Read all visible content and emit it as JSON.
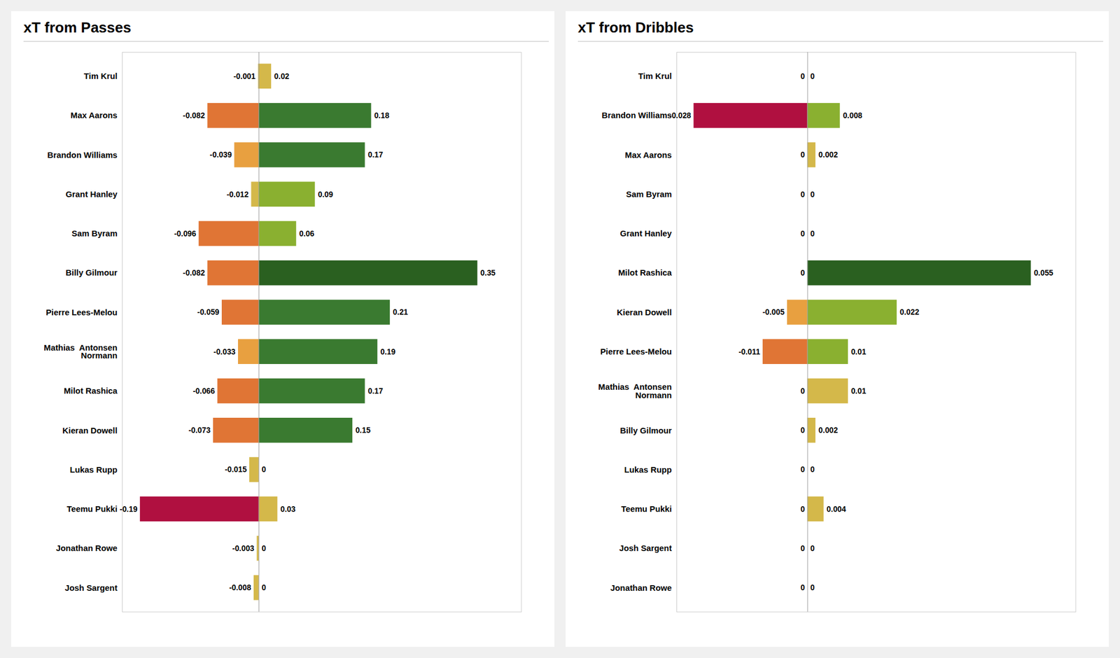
{
  "chart_data": [
    {
      "type": "bar",
      "orientation": "horizontal",
      "title": "xT from Passes",
      "categories": [
        "Tim Krul",
        "Max Aarons",
        "Brandon Williams",
        "Grant Hanley",
        "Sam Byram",
        "Billy Gilmour",
        "Pierre Lees-Melou",
        "Mathias  Antonsen\nNormann",
        "Milot Rashica",
        "Kieran Dowell",
        "Lukas Rupp",
        "Teemu Pukki",
        "Jonathan Rowe",
        "Josh Sargent"
      ],
      "series": [
        {
          "values": [
            -0.001,
            -0.082,
            -0.039,
            -0.012,
            -0.096,
            -0.082,
            -0.059,
            -0.033,
            -0.066,
            -0.073,
            -0.015,
            -0.19,
            -0.003,
            -0.008
          ],
          "colors": [
            "#d4b84a",
            "#e07535",
            "#e8a040",
            "#d4b84a",
            "#e07535",
            "#e07535",
            "#e07535",
            "#e8a040",
            "#e07535",
            "#e07535",
            "#d4b84a",
            "#b01040",
            "#d4b84a",
            "#d4b84a"
          ]
        },
        {
          "values": [
            0.02,
            0.18,
            0.17,
            0.09,
            0.06,
            0.35,
            0.21,
            0.19,
            0.17,
            0.15,
            0,
            0.03,
            0,
            0
          ],
          "colors": [
            "#d4b84a",
            "#3a7a30",
            "#3a7a30",
            "#8ab030",
            "#8ab030",
            "#2a6020",
            "#3a7a30",
            "#3a7a30",
            "#3a7a30",
            "#3a7a30",
            "#d4b84a",
            "#d4b84a",
            "#d4b84a",
            "#d4b84a"
          ]
        }
      ],
      "xlim": [
        -0.2185,
        0.42
      ],
      "data_labels": true,
      "tick_labels": "y",
      "grid": false
    },
    {
      "type": "bar",
      "orientation": "horizontal",
      "title": "xT from Dribbles",
      "categories": [
        "Tim Krul",
        "Brandon Williams",
        "Max Aarons",
        "Sam Byram",
        "Grant Hanley",
        "Milot Rashica",
        "Kieran Dowell",
        "Pierre Lees-Melou",
        "Mathias  Antonsen\nNormann",
        "Billy Gilmour",
        "Lukas Rupp",
        "Teemu Pukki",
        "Josh Sargent",
        "Jonathan Rowe"
      ],
      "series": [
        {
          "values": [
            0,
            -0.028,
            0,
            0,
            0,
            0,
            -0.005,
            -0.011,
            0,
            0,
            0,
            0,
            0,
            0
          ],
          "colors": [
            "#d4b84a",
            "#b01040",
            "#d4b84a",
            "#d4b84a",
            "#d4b84a",
            "#d4b84a",
            "#e8a040",
            "#e07535",
            "#d4b84a",
            "#d4b84a",
            "#d4b84a",
            "#d4b84a",
            "#d4b84a",
            "#d4b84a"
          ]
        },
        {
          "values": [
            0,
            0.008,
            0.002,
            0,
            0,
            0.055,
            0.022,
            0.01,
            0.01,
            0.002,
            0,
            0.004,
            0,
            0
          ],
          "colors": [
            "#d4b84a",
            "#8ab030",
            "#d4b84a",
            "#d4b84a",
            "#d4b84a",
            "#2a6020",
            "#8ab030",
            "#8ab030",
            "#d4b84a",
            "#d4b84a",
            "#d4b84a",
            "#d4b84a",
            "#d4b84a",
            "#d4b84a"
          ]
        }
      ],
      "xlim": [
        -0.0322,
        0.066
      ],
      "data_labels": true,
      "tick_labels": "y",
      "grid": false
    }
  ]
}
